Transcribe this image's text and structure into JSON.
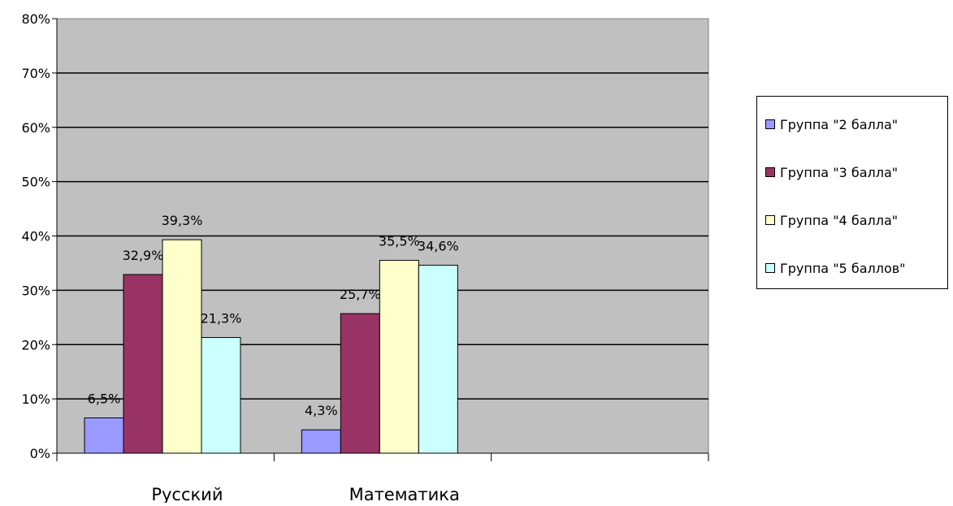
{
  "chart_data": {
    "type": "bar",
    "categories": [
      "Русский",
      "Математика",
      ""
    ],
    "series": [
      {
        "name": "Группа \"2 балла\"",
        "color": "#9999FF",
        "values": [
          6.5,
          4.3,
          null
        ],
        "labels": [
          "6,5%",
          "4,3%",
          ""
        ]
      },
      {
        "name": "Группа \"3 балла\"",
        "color": "#993366",
        "values": [
          32.9,
          25.7,
          null
        ],
        "labels": [
          "32,9%",
          "25,7%",
          ""
        ]
      },
      {
        "name": "Группа \"4 балла\"",
        "color": "#FFFFCC",
        "values": [
          39.3,
          35.5,
          null
        ],
        "labels": [
          "39,3%",
          "35,5%",
          ""
        ]
      },
      {
        "name": "Группа \"5 баллов\"",
        "color": "#CCFFFF",
        "values": [
          21.3,
          34.6,
          null
        ],
        "labels": [
          "21,3%",
          "34,6%",
          ""
        ]
      }
    ],
    "y_ticks": [
      "0%",
      "10%",
      "20%",
      "30%",
      "40%",
      "50%",
      "60%",
      "70%",
      "80%"
    ],
    "ylim": [
      0,
      80
    ],
    "grid": true,
    "plot_background": "#C0C0C0",
    "legend_position": "right"
  }
}
